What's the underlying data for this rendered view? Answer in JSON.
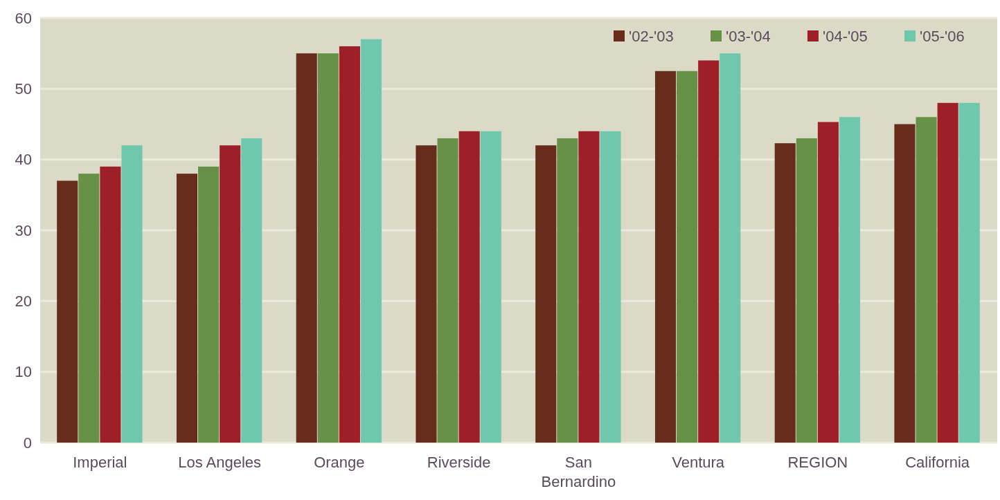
{
  "chart_data": {
    "type": "bar",
    "categories": [
      "Imperial",
      "Los Angeles",
      "Orange",
      "Riverside",
      "San Bernardino",
      "Ventura",
      "REGION",
      "California"
    ],
    "series": [
      {
        "name": "'02-'03",
        "color": "#682c1c",
        "values": [
          37,
          38,
          55,
          42,
          42,
          52.5,
          42.3,
          45
        ]
      },
      {
        "name": "'03-'04",
        "color": "#669146",
        "values": [
          38,
          39,
          55,
          43,
          43,
          52.5,
          43,
          46
        ]
      },
      {
        "name": "'04-'05",
        "color": "#9d1f27",
        "values": [
          39,
          42,
          56,
          44,
          44,
          54,
          45.3,
          48
        ]
      },
      {
        "name": "'05-'06",
        "color": "#6fc8ae",
        "values": [
          42,
          43,
          57,
          44,
          44,
          55,
          46,
          48
        ]
      }
    ],
    "ylim": [
      0,
      60
    ],
    "yticks": [
      0,
      10,
      20,
      30,
      40,
      50,
      60
    ],
    "grid": "y",
    "legend": "top right"
  }
}
